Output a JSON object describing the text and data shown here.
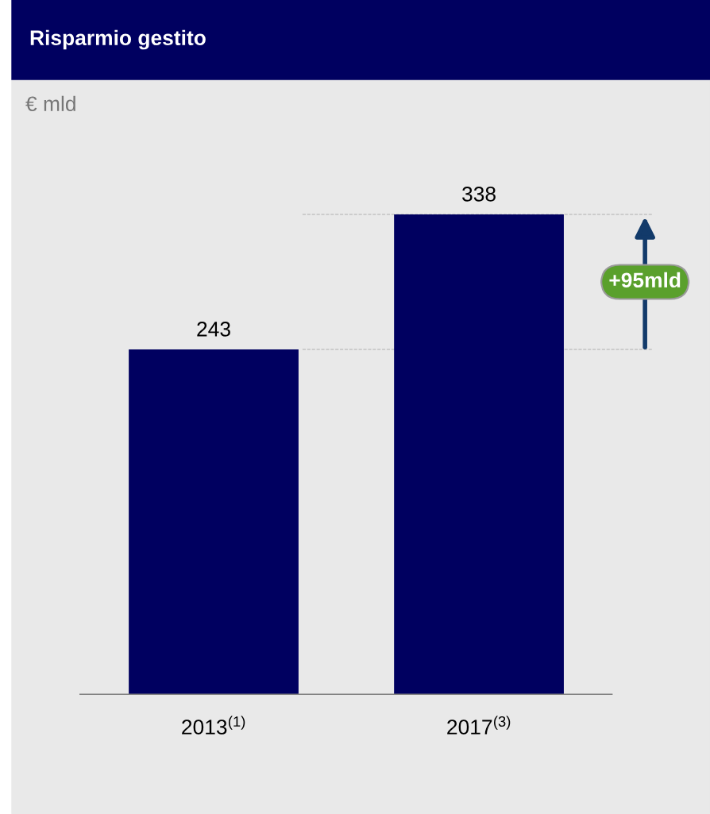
{
  "chart_data": {
    "type": "bar",
    "title": "Risparmio gestito",
    "subtitle": "€ mld",
    "categories": [
      "2013$^{(1)}$",
      "2017$^{(3)}$"
    ],
    "values": [
      243,
      338
    ],
    "color": "#000060",
    "data_labels": true,
    "ref_lines": [
      {
        "axis": "y",
        "value": 243,
        "color": "#b0b0b0",
        "line_style": "dashed"
      },
      {
        "axis": "y",
        "value": 338,
        "color": "#b0b0b0",
        "line_style": "dashed"
      }
    ],
    "annotations": [
      "+95mld"
    ],
    "grid": false
  }
}
